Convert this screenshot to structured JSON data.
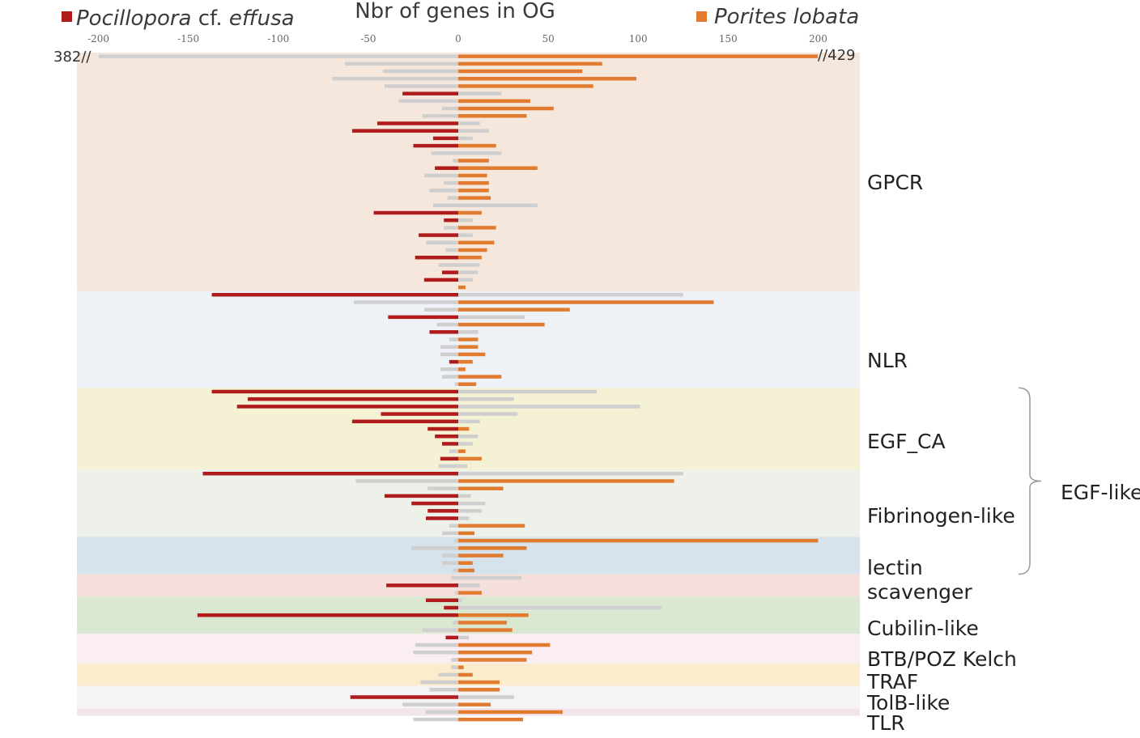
{
  "chart_data": {
    "type": "bar",
    "orientation": "horizontal-diverging",
    "title": "Nbr of genes in OG",
    "legend": [
      {
        "name_regular": "",
        "name_italic": "Pocillopora",
        "name_mid": " cf. ",
        "name_italic2": "effusa",
        "color": "#b01c1c",
        "side": "negative"
      },
      {
        "name_regular": "",
        "name_italic": "Porites lobata",
        "name_mid": "",
        "name_italic2": "",
        "color": "#e07b30",
        "side": "positive"
      }
    ],
    "xlim": [
      -200,
      200
    ],
    "xticks": [
      -200,
      -150,
      -100,
      -50,
      0,
      50,
      100,
      150,
      200
    ],
    "break_labels": {
      "left": "382//",
      "right": "//429"
    },
    "colors": {
      "pocillopora": "#b01c1c",
      "porites": "#e07b30",
      "gray": "#cfcfcf"
    },
    "groups": [
      {
        "label": "GPCR",
        "color": "#f6e7dc",
        "rows": 32
      },
      {
        "label": "NLR",
        "color": "#eef2f7",
        "rows": 13
      },
      {
        "label": "EGF_CA",
        "color": "#f5f1d4",
        "rows": 11
      },
      {
        "label": "Fibrinogen-like",
        "color": "#eef0ea",
        "rows": 9
      },
      {
        "label": "lectin",
        "color": "#d6e2ec",
        "rows": 5
      },
      {
        "label": "scavenger",
        "color": "#f5dfdc",
        "rows": 3
      },
      {
        "label": "Cubilin-like",
        "color": "#dbe8d1",
        "rows": 5
      },
      {
        "label": "BTB/POZ Kelch",
        "color": "#fbeef2",
        "rows": 4
      },
      {
        "label": "TRAF",
        "color": "#faeccc",
        "rows": 3
      },
      {
        "label": "TolB-like",
        "color": "#f4f4f4",
        "rows": 3
      },
      {
        "label": "TLR",
        "color": "#f2e4ec",
        "rows": 1
      }
    ],
    "brace_label": "EGF-like",
    "series": [
      {
        "name": "Pocillopora cf. effusa",
        "values": [
          -382,
          -63,
          -42,
          -70,
          -41,
          -31,
          -33,
          -9,
          -20,
          -45,
          -59,
          -14,
          -25,
          -15,
          -3,
          -13,
          -19,
          -8,
          -16,
          -6,
          -14,
          -47,
          -8,
          -8,
          -22,
          -18,
          -7,
          -24,
          -11,
          -9,
          -19,
          0,
          -137,
          -58,
          -19,
          -39,
          -12,
          -16,
          -5,
          -10,
          -10,
          -5,
          -10,
          -9,
          -2,
          -137,
          -117,
          -123,
          -43,
          -59,
          -17,
          -13,
          -9,
          -5,
          -10,
          -11,
          -142,
          -57,
          -17,
          -41,
          -26,
          -17,
          -18,
          -5,
          -9,
          -2,
          -26,
          -9,
          -9,
          -3,
          -4,
          -40,
          -2,
          -18,
          -8,
          -145,
          -3,
          -20,
          -7,
          -24,
          -25,
          -4,
          -4,
          -11,
          -21,
          -16,
          -60,
          -31,
          -18,
          -25
        ]
      },
      {
        "name": "Porites lobata",
        "values": [
          429,
          80,
          69,
          99,
          75,
          24,
          40,
          53,
          38,
          12,
          17,
          8,
          21,
          24,
          17,
          44,
          16,
          17,
          17,
          18,
          44,
          13,
          8,
          21,
          8,
          20,
          16,
          13,
          12,
          11,
          8,
          4,
          125,
          142,
          62,
          37,
          48,
          11,
          11,
          11,
          15,
          8,
          4,
          24,
          10,
          77,
          31,
          101,
          33,
          12,
          6,
          11,
          8,
          4,
          13,
          5,
          125,
          120,
          25,
          7,
          15,
          13,
          6,
          37,
          9,
          200,
          38,
          25,
          8,
          9,
          35,
          12,
          13,
          2,
          113,
          39,
          27,
          30,
          6,
          51,
          41,
          38,
          3,
          8,
          23,
          23,
          31,
          18,
          58,
          36
        ]
      }
    ],
    "color_flags": {
      "negative": [
        "g",
        "g",
        "g",
        "g",
        "g",
        "r",
        "g",
        "g",
        "g",
        "r",
        "r",
        "r",
        "r",
        "g",
        "g",
        "r",
        "g",
        "g",
        "g",
        "g",
        "g",
        "r",
        "r",
        "g",
        "r",
        "g",
        "g",
        "r",
        "g",
        "r",
        "r",
        "r",
        "r",
        "g",
        "g",
        "r",
        "g",
        "r",
        "g",
        "g",
        "g",
        "r",
        "g",
        "g",
        "g",
        "r",
        "r",
        "r",
        "r",
        "r",
        "r",
        "r",
        "r",
        "g",
        "r",
        "g",
        "r",
        "g",
        "g",
        "r",
        "r",
        "r",
        "r",
        "g",
        "g",
        "g",
        "g",
        "g",
        "g",
        "g",
        "g",
        "r",
        "g",
        "r",
        "r",
        "r",
        "g",
        "g",
        "r",
        "g",
        "g",
        "g",
        "g",
        "g",
        "g",
        "g",
        "r",
        "g",
        "g",
        "g"
      ],
      "positive": [
        "o",
        "o",
        "o",
        "o",
        "o",
        "g",
        "o",
        "o",
        "o",
        "g",
        "g",
        "g",
        "o",
        "g",
        "o",
        "o",
        "o",
        "o",
        "o",
        "o",
        "g",
        "o",
        "g",
        "o",
        "g",
        "o",
        "o",
        "o",
        "g",
        "g",
        "g",
        "o",
        "g",
        "o",
        "o",
        "g",
        "o",
        "g",
        "o",
        "o",
        "o",
        "o",
        "o",
        "o",
        "o",
        "g",
        "g",
        "g",
        "g",
        "g",
        "o",
        "g",
        "g",
        "o",
        "o",
        "g",
        "g",
        "o",
        "o",
        "g",
        "g",
        "g",
        "g",
        "o",
        "o",
        "o",
        "o",
        "o",
        "o",
        "o",
        "g",
        "g",
        "o",
        "g",
        "g",
        "o",
        "o",
        "o",
        "g",
        "o",
        "o",
        "o",
        "o",
        "o",
        "o",
        "o",
        "g",
        "o",
        "o",
        "o"
      ]
    }
  }
}
